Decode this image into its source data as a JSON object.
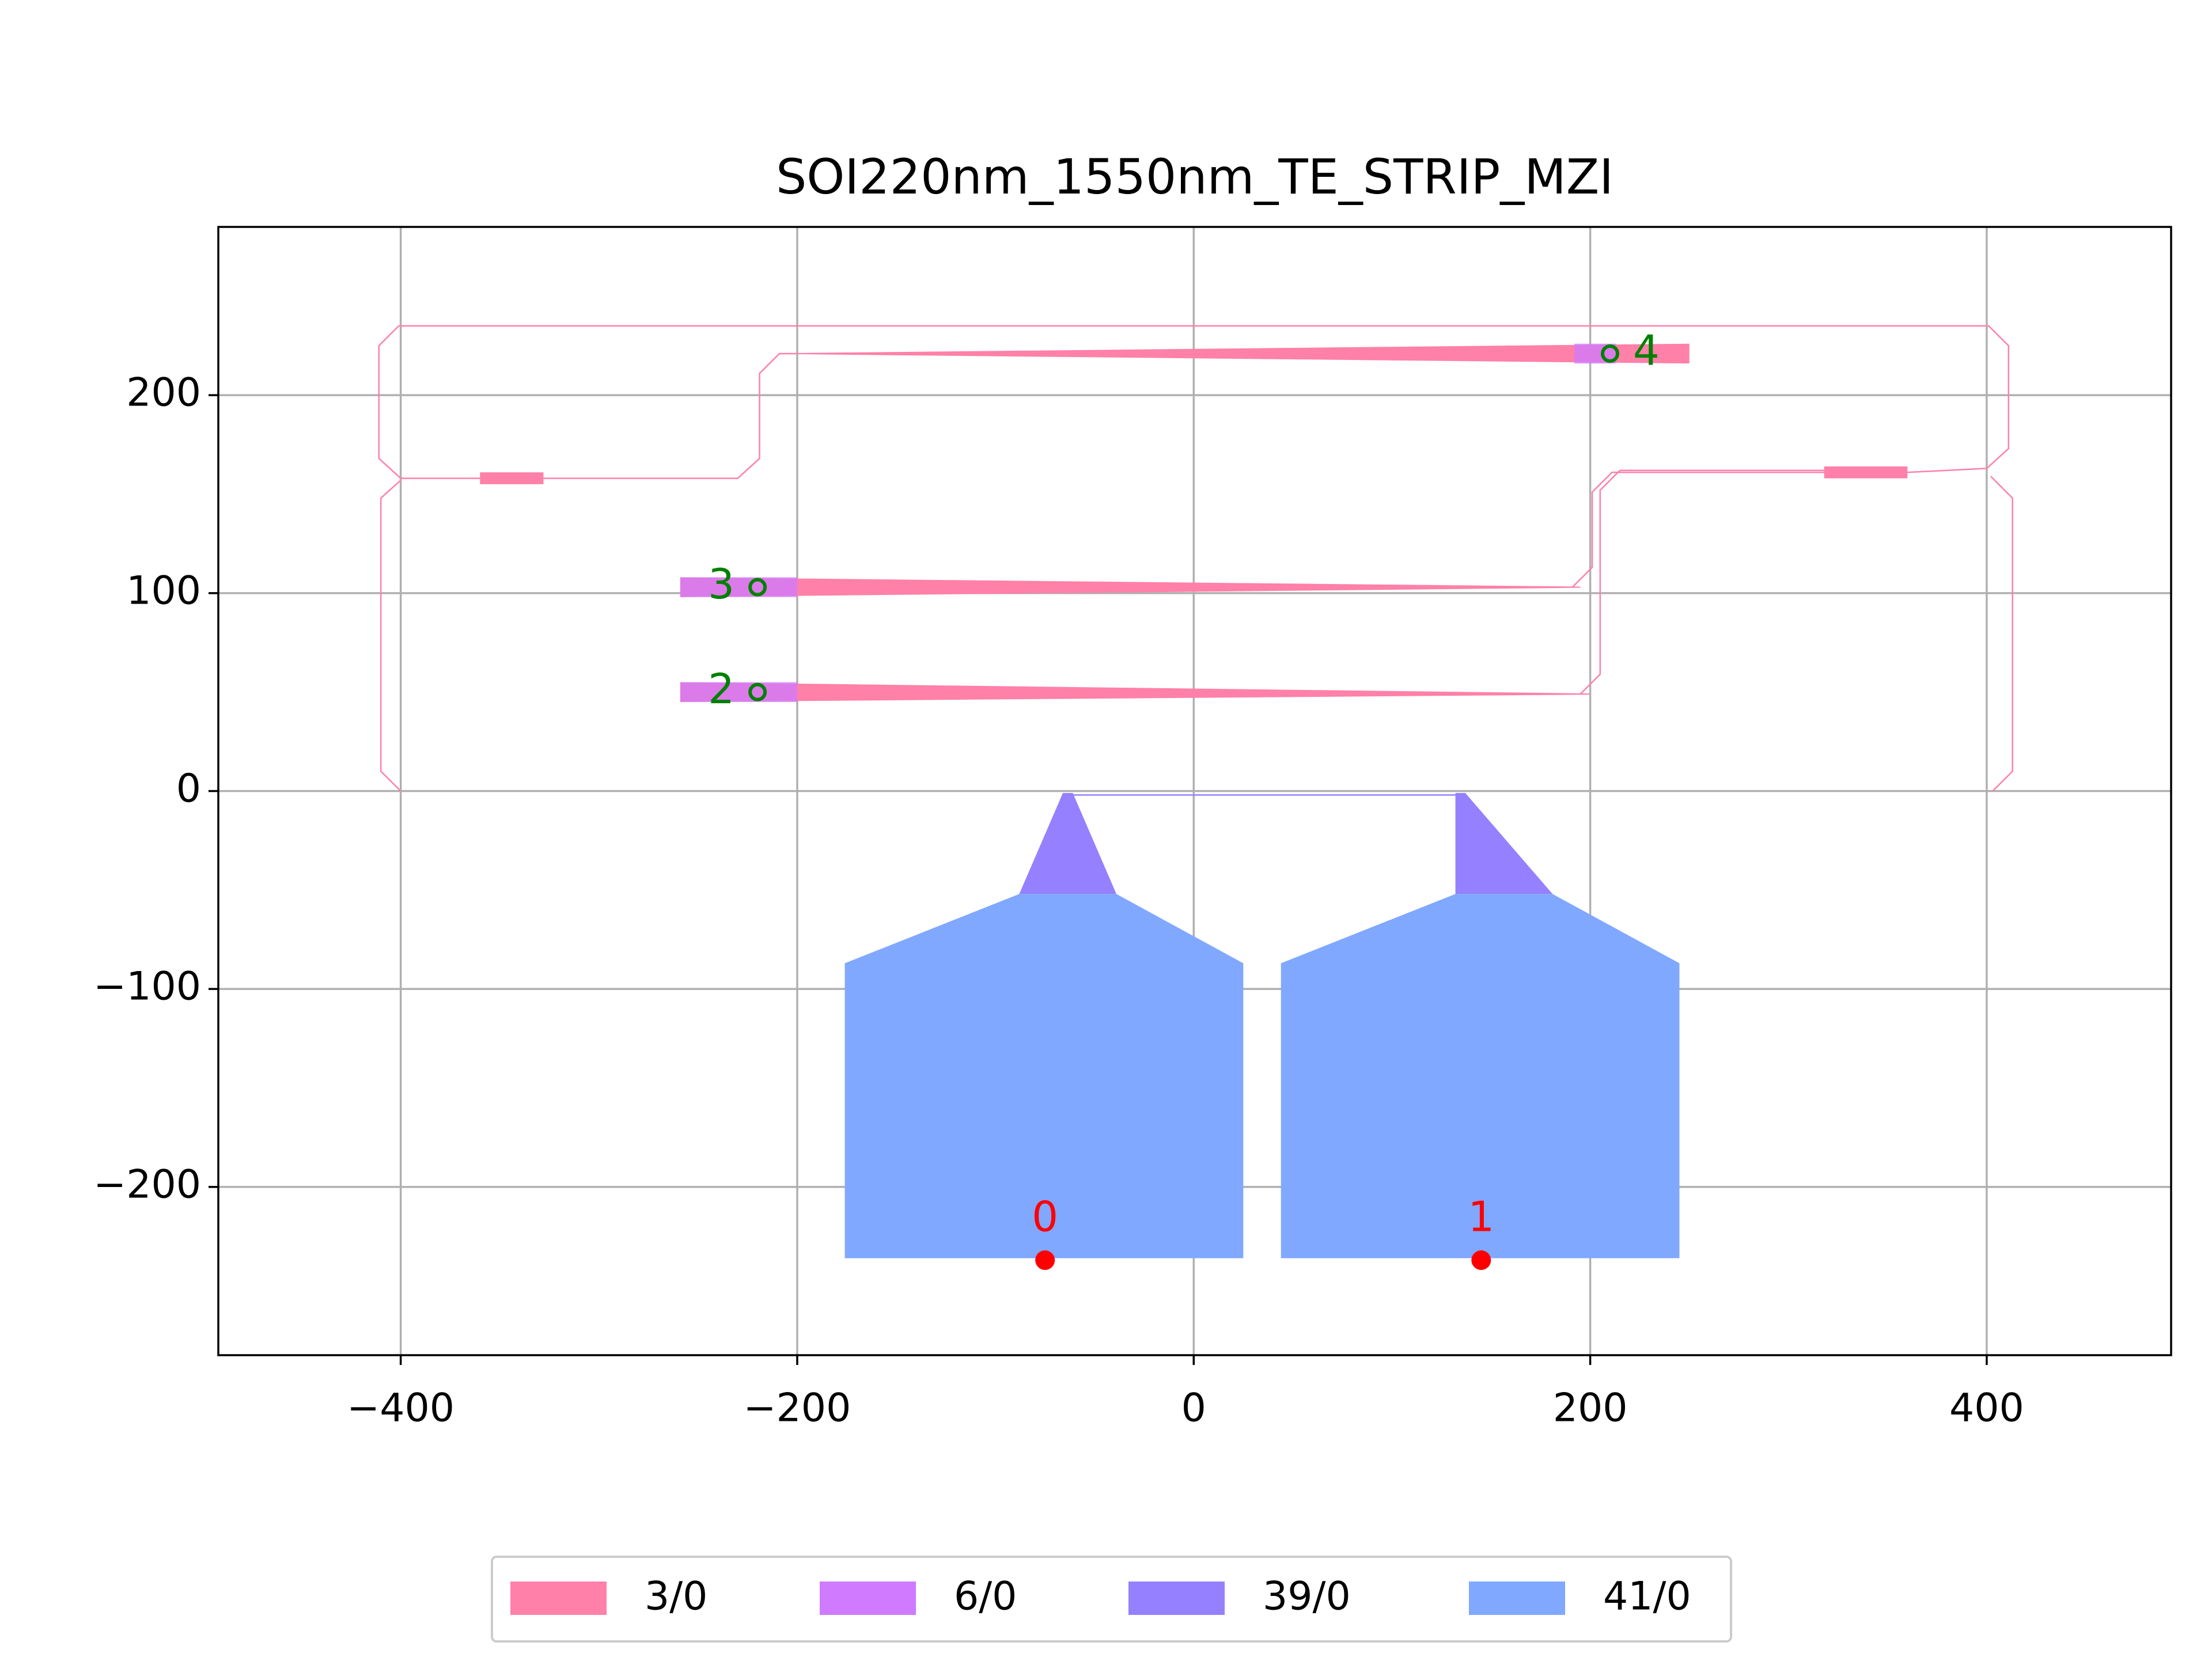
{
  "chart_data": {
    "type": "layout",
    "title": "SOI220nm_1550nm_TE_STRIP_MZI",
    "xlim": [
      -492,
      493
    ],
    "ylim": [
      -285,
      285
    ],
    "xticks": [
      {
        "value": -400,
        "label": "−400"
      },
      {
        "value": -200,
        "label": "−200"
      },
      0,
      200,
      400
    ],
    "yticks": [
      {
        "value": -200,
        "label": "−200"
      },
      {
        "value": -100,
        "label": "−100"
      },
      0,
      100,
      200
    ],
    "grid": true,
    "legend": "lower center",
    "series": [
      {
        "name": "3/0",
        "color": "#ff80a8",
        "polygons": [
          {
            "x": [
              -200,
              250,
              250,
              -200
            ],
            "y": [
              221.3,
              226,
              216,
              220.7
            ]
          },
          {
            "x": [
              -259,
              195,
              195,
              -259
            ],
            "y": [
              108,
              103.3,
              102.7,
              98
            ]
          },
          {
            "x": [
              -259,
              200,
              200,
              -259
            ],
            "y": [
              55,
              49.3,
              48.7,
              45
            ]
          },
          {
            "x": [
              -360,
              -328,
              -328,
              -360
            ],
            "y": [
              161,
              161,
              155,
              155
            ]
          },
          {
            "x": [
              318,
              360,
              360,
              318
            ],
            "y": [
              164,
              164,
              158,
              158
            ]
          }
        ],
        "paths": [
          {
            "x": [
              -360,
              -400,
              -411,
              -411,
              -401,
              401,
              411,
              411,
              400,
              360
            ],
            "y": [
              158,
              158,
              168,
              225,
              235,
              235,
              225,
              173,
              163,
              161
            ]
          },
          {
            "x": [
              -400,
              -410,
              -410,
              -400
            ],
            "y": [
              157,
              148,
              10,
              0
            ]
          },
          {
            "x": [
              403,
              413,
              413,
              402
            ],
            "y": [
              0,
              10,
              148,
              159
            ]
          },
          {
            "x": [
              -328,
              -230,
              -219,
              -219,
              -209,
              -200
            ],
            "y": [
              158,
              158,
              168,
              211,
              221,
              221
            ]
          },
          {
            "x": [
              318,
              211,
              201,
              201,
              191
            ],
            "y": [
              161,
              161,
              151,
              113,
              103
            ]
          },
          {
            "x": [
              318,
              215,
              205,
              205,
              195
            ],
            "y": [
              162,
              162,
              152,
              59,
              49
            ]
          }
        ]
      },
      {
        "name": "6/0",
        "color": "#cf7aff",
        "polygons": [
          {
            "x": [
              192,
              213,
              213,
              192
            ],
            "y": [
              226,
              226,
              216,
              216
            ]
          },
          {
            "x": [
              -259,
              -200,
              -200,
              -259
            ],
            "y": [
              108,
              108,
              98,
              98
            ]
          },
          {
            "x": [
              -259,
              -200,
              -200,
              -259
            ],
            "y": [
              55,
              55,
              45,
              45
            ]
          }
        ],
        "paths": []
      },
      {
        "name": "39/0",
        "color": "#9580ff",
        "polygons": [
          {
            "x": [
              -88,
              -39,
              -61,
              -66
            ],
            "y": [
              -52,
              -52,
              -1,
              -1
            ]
          },
          {
            "x": [
              132,
              181,
              137,
              132
            ],
            "y": [
              -52,
              -52,
              -1,
              -1
            ]
          }
        ],
        "paths": [
          {
            "x": [
              -64,
              134
            ],
            "y": [
              -2,
              -2
            ]
          }
        ]
      },
      {
        "name": "41/0",
        "color": "#80a8ff",
        "polygons": [
          {
            "x": [
              -176,
              25,
              25,
              -39,
              -88,
              -176
            ],
            "y": [
              -236,
              -236,
              -87,
              -52,
              -52,
              -87
            ]
          },
          {
            "x": [
              44,
              245,
              245,
              181,
              132,
              44
            ],
            "y": [
              -236,
              -236,
              -87,
              -52,
              -52,
              -87
            ]
          }
        ],
        "paths": []
      }
    ],
    "ports": [
      {
        "label": "0",
        "x": -75,
        "y": -237,
        "color": "#ff0000",
        "filled": true
      },
      {
        "label": "1",
        "x": 145,
        "y": -237,
        "color": "#ff0000",
        "filled": true
      },
      {
        "label": "2",
        "x": -220,
        "y": 50,
        "color": "#008000",
        "filled": false
      },
      {
        "label": "3",
        "x": -220,
        "y": 103,
        "color": "#008000",
        "filled": false
      },
      {
        "label": "4",
        "x": 210,
        "y": 221,
        "color": "#008000",
        "filled": false
      }
    ]
  }
}
